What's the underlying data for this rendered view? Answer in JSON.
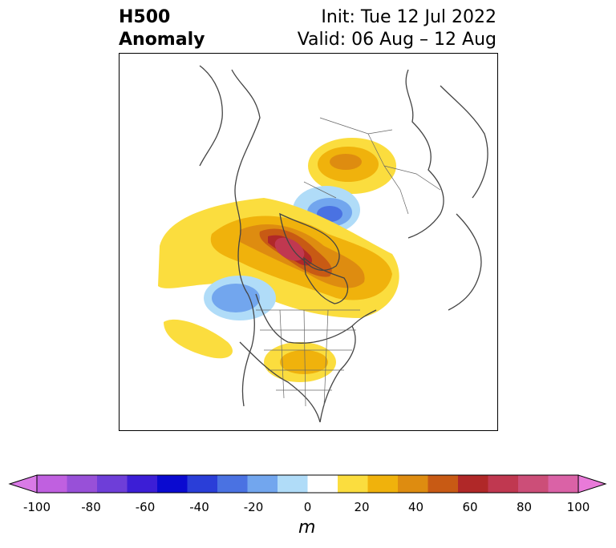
{
  "title": {
    "left_line1": "H500",
    "left_line2": "Anomaly",
    "init": "Init: Tue 12 Jul 2022",
    "valid": "Valid: 06 Aug – 12 Aug"
  },
  "colorbar": {
    "unit": "m",
    "ticks": [
      "-100",
      "-80",
      "-60",
      "-40",
      "-20",
      "0",
      "20",
      "40",
      "60",
      "80",
      "100"
    ],
    "under_color": "#d97ae6",
    "over_color": "#e97ad9",
    "colors": [
      "#c060e0",
      "#9850d8",
      "#6e3ed8",
      "#3c1ed6",
      "#0a0ad0",
      "#2a3ed8",
      "#4a72e2",
      "#72a6ee",
      "#b0dcf8",
      "#ffffff",
      "#fbdd3e",
      "#f0b20c",
      "#de8c10",
      "#c85a14",
      "#b02828",
      "#c03850",
      "#cc4e78",
      "#da62a6"
    ]
  },
  "map": {
    "projection": "polar-stereographic",
    "region": "north-america-arctic",
    "features": [
      "coastlines",
      "country-borders",
      "state-borders",
      "anomaly-contours"
    ]
  }
}
